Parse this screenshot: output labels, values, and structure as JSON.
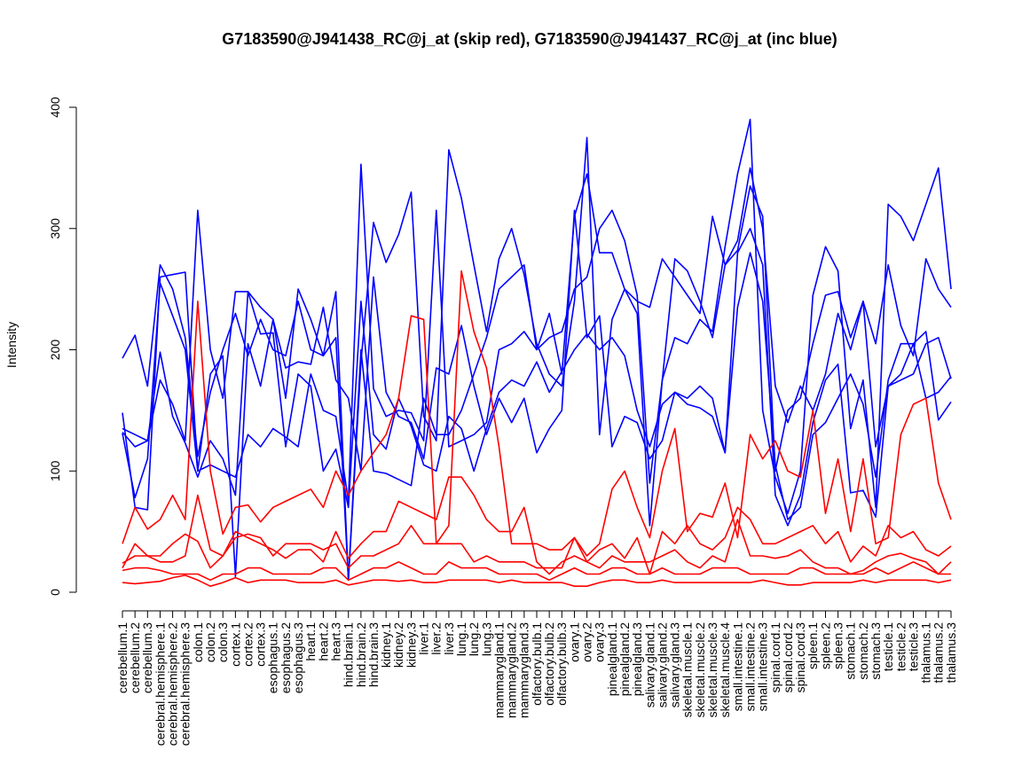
{
  "chart_data": {
    "type": "line",
    "title": "G7183590@J941438_RC@j_at (skip red), G7183590@J941437_RC@j_at (inc blue)",
    "xlabel": "",
    "ylabel": "Intensity",
    "ylim": [
      0,
      410
    ],
    "yticks": [
      0,
      100,
      200,
      300,
      400
    ],
    "grid": false,
    "categories": [
      "cerebellum.1",
      "cerebellum.2",
      "cerebellum.3",
      "cerebral.hemisphere.1",
      "cerebral.hemisphere.2",
      "cerebral.hemisphere.3",
      "colon.1",
      "colon.2",
      "colon.3",
      "cortex.1",
      "cortex.2",
      "cortex.3",
      "esophagus.1",
      "esophagus.2",
      "esophagus.3",
      "heart.1",
      "heart.2",
      "heart.3",
      "hind.brain.1",
      "hind.brain.2",
      "hind.brain.3",
      "kidney.1",
      "kidney.2",
      "kidney.3",
      "liver.1",
      "liver.2",
      "liver.3",
      "lung.1",
      "lung.2",
      "lung.3",
      "mammarygland.1",
      "mammarygland.2",
      "mammarygland.3",
      "olfactory.bulb.1",
      "olfactory.bulb.2",
      "olfactory.bulb.3",
      "ovary.1",
      "ovary.2",
      "ovary.3",
      "pinealgland.1",
      "pinealgland.2",
      "pinealgland.3",
      "salivary.gland.1",
      "salivary.gland.2",
      "salivary.gland.3",
      "skeletal.muscle.1",
      "skeletal.muscle.2",
      "skeletal.muscle.3",
      "skeletal.muscle.4",
      "small.intestine.1",
      "small.intestine.2",
      "small.intestine.3",
      "spinal.cord.1",
      "spinal.cord.2",
      "spinal.cord.3",
      "spleen.1",
      "spleen.2",
      "spleen.3",
      "stomach.1",
      "stomach.2",
      "stomach.3",
      "testicle.1",
      "testicle.2",
      "testicle.3",
      "thalamus.1",
      "thalamus.2",
      "thalamus.3"
    ],
    "series": [
      {
        "color": "#0000ff",
        "values": [
          193,
          212,
          170,
          270,
          250,
          210,
          112,
          165,
          200,
          230,
          195,
          225,
          200,
          195,
          240,
          200,
          195,
          210,
          10,
          200,
          100,
          98,
          93,
          88,
          160,
          130,
          130,
          150,
          180,
          210,
          250,
          260,
          270,
          200,
          230,
          180,
          310,
          345,
          280,
          280,
          250,
          240,
          235,
          275,
          260,
          245,
          230,
          310,
          270,
          290,
          350,
          300,
          170,
          140,
          170,
          150,
          180,
          230,
          200,
          240,
          120,
          170,
          175,
          180,
          205,
          210,
          176
        ]
      },
      {
        "color": "#0000ff",
        "values": [
          148,
          70,
          68,
          260,
          262,
          264,
          100,
          105,
          100,
          95,
          130,
          120,
          135,
          128,
          120,
          180,
          150,
          145,
          75,
          353,
          168,
          145,
          150,
          148,
          125,
          315,
          120,
          125,
          130,
          140,
          200,
          205,
          215,
          200,
          210,
          215,
          250,
          260,
          300,
          315,
          290,
          245,
          90,
          175,
          275,
          265,
          240,
          210,
          270,
          282,
          335,
          310,
          100,
          150,
          160,
          205,
          245,
          248,
          210,
          240,
          205,
          270,
          220,
          195,
          275,
          250,
          235
        ]
      },
      {
        "color": "#0000ff",
        "values": [
          135,
          130,
          125,
          175,
          155,
          125,
          315,
          200,
          160,
          248,
          248,
          235,
          225,
          160,
          250,
          225,
          195,
          248,
          10,
          190,
          305,
          272,
          295,
          330,
          145,
          125,
          365,
          325,
          270,
          215,
          275,
          300,
          262,
          205,
          180,
          170,
          240,
          375,
          130,
          225,
          250,
          230,
          55,
          175,
          210,
          205,
          225,
          215,
          285,
          345,
          390,
          150,
          95,
          65,
          100,
          245,
          285,
          265,
          135,
          175,
          70,
          320,
          310,
          290,
          320,
          350,
          250
        ]
      },
      {
        "color": "#0000ff",
        "values": [
          132,
          120,
          125,
          198,
          145,
          123,
          95,
          125,
          110,
          80,
          248,
          213,
          214,
          120,
          180,
          170,
          100,
          118,
          70,
          240,
          130,
          118,
          160,
          137,
          105,
          100,
          145,
          135,
          100,
          135,
          165,
          175,
          170,
          190,
          165,
          182,
          200,
          213,
          200,
          210,
          195,
          150,
          120,
          155,
          165,
          155,
          152,
          145,
          115,
          280,
          300,
          270,
          80,
          55,
          80,
          140,
          175,
          188,
          82,
          84,
          62,
          170,
          180,
          205,
          160,
          165,
          178
        ]
      },
      {
        "color": "#0000ff",
        "values": [
          131,
          78,
          110,
          255,
          228,
          200,
          100,
          180,
          195,
          13,
          205,
          170,
          225,
          185,
          190,
          188,
          235,
          175,
          160,
          100,
          260,
          165,
          145,
          140,
          110,
          185,
          180,
          220,
          170,
          130,
          160,
          140,
          160,
          115,
          135,
          150,
          315,
          210,
          228,
          120,
          145,
          140,
          110,
          125,
          165,
          160,
          170,
          160,
          115,
          235,
          280,
          240,
          105,
          60,
          70,
          130,
          140,
          160,
          180,
          155,
          95,
          175,
          205,
          205,
          215,
          142,
          157
        ]
      },
      {
        "color": "#ff0000",
        "values": [
          40,
          70,
          52,
          60,
          80,
          60,
          240,
          100,
          48,
          70,
          72,
          58,
          70,
          75,
          80,
          85,
          70,
          100,
          80,
          100,
          115,
          130,
          160,
          228,
          225,
          40,
          55,
          265,
          215,
          185,
          120,
          40,
          40,
          40,
          35,
          35,
          45,
          30,
          40,
          85,
          100,
          70,
          45,
          100,
          135,
          50,
          65,
          62,
          90,
          45,
          130,
          110,
          125,
          100,
          95,
          150,
          65,
          110,
          50,
          110,
          40,
          45,
          130,
          155,
          160,
          90,
          60
        ]
      },
      {
        "color": "#ff0000",
        "values": [
          24,
          30,
          30,
          30,
          40,
          48,
          42,
          20,
          30,
          50,
          45,
          40,
          35,
          28,
          35,
          35,
          25,
          50,
          28,
          40,
          50,
          50,
          75,
          70,
          65,
          60,
          95,
          95,
          80,
          60,
          50,
          50,
          70,
          25,
          15,
          25,
          30,
          25,
          35,
          40,
          28,
          45,
          15,
          50,
          40,
          55,
          40,
          35,
          45,
          70,
          60,
          40,
          40,
          45,
          50,
          55,
          40,
          50,
          25,
          38,
          30,
          55,
          45,
          50,
          35,
          30,
          38
        ]
      },
      {
        "color": "#ff0000",
        "values": [
          20,
          40,
          30,
          25,
          25,
          30,
          80,
          35,
          30,
          45,
          48,
          45,
          30,
          40,
          40,
          40,
          35,
          40,
          20,
          30,
          30,
          35,
          40,
          55,
          40,
          40,
          40,
          40,
          25,
          30,
          25,
          25,
          25,
          20,
          20,
          20,
          45,
          25,
          20,
          30,
          25,
          25,
          25,
          30,
          35,
          25,
          20,
          30,
          25,
          60,
          30,
          30,
          28,
          30,
          35,
          25,
          20,
          20,
          15,
          18,
          25,
          30,
          32,
          28,
          25,
          15,
          25
        ]
      },
      {
        "color": "#ff0000",
        "values": [
          18,
          20,
          20,
          18,
          15,
          15,
          15,
          10,
          15,
          15,
          20,
          20,
          15,
          15,
          15,
          15,
          20,
          20,
          10,
          15,
          20,
          20,
          25,
          20,
          15,
          15,
          25,
          20,
          20,
          20,
          15,
          15,
          15,
          15,
          10,
          15,
          20,
          15,
          15,
          20,
          20,
          15,
          15,
          20,
          15,
          15,
          15,
          20,
          20,
          20,
          15,
          15,
          15,
          15,
          20,
          20,
          15,
          15,
          15,
          15,
          20,
          15,
          20,
          25,
          20,
          15,
          15
        ]
      },
      {
        "color": "#ff0000",
        "values": [
          8,
          7,
          8,
          9,
          12,
          14,
          10,
          5,
          8,
          12,
          8,
          10,
          10,
          10,
          8,
          8,
          8,
          10,
          6,
          8,
          10,
          10,
          9,
          10,
          8,
          8,
          10,
          10,
          10,
          10,
          8,
          10,
          8,
          8,
          8,
          8,
          5,
          5,
          8,
          10,
          10,
          8,
          8,
          10,
          8,
          8,
          8,
          8,
          8,
          8,
          8,
          10,
          8,
          6,
          6,
          8,
          8,
          8,
          8,
          10,
          8,
          10,
          10,
          10,
          10,
          8,
          10
        ]
      }
    ]
  }
}
